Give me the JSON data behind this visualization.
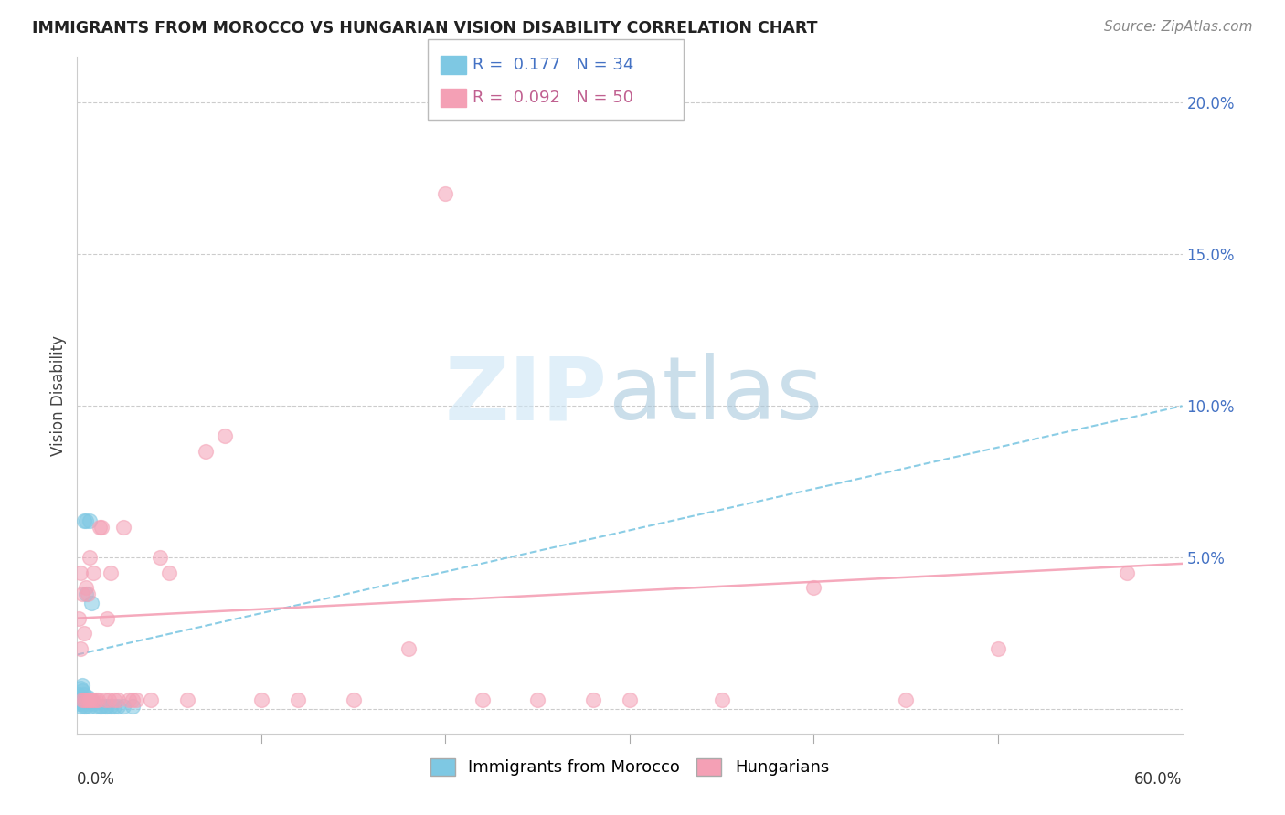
{
  "title": "IMMIGRANTS FROM MOROCCO VS HUNGARIAN VISION DISABILITY CORRELATION CHART",
  "source": "Source: ZipAtlas.com",
  "ylabel": "Vision Disability",
  "yticks": [
    0.0,
    0.05,
    0.1,
    0.15,
    0.2
  ],
  "ytick_labels": [
    "",
    "5.0%",
    "10.0%",
    "15.0%",
    "20.0%"
  ],
  "xlim": [
    0.0,
    0.6
  ],
  "ylim": [
    -0.008,
    0.215
  ],
  "legend1_R": "0.177",
  "legend1_N": "34",
  "legend2_R": "0.092",
  "legend2_N": "50",
  "blue_color": "#7ec8e3",
  "pink_color": "#f4a0b5",
  "blue_scatter_x": [
    0.001,
    0.001,
    0.002,
    0.002,
    0.002,
    0.003,
    0.003,
    0.003,
    0.003,
    0.004,
    0.004,
    0.004,
    0.004,
    0.005,
    0.005,
    0.005,
    0.005,
    0.006,
    0.006,
    0.007,
    0.007,
    0.008,
    0.008,
    0.009,
    0.01,
    0.012,
    0.013,
    0.015,
    0.016,
    0.018,
    0.02,
    0.022,
    0.025,
    0.03
  ],
  "blue_scatter_y": [
    0.002,
    0.005,
    0.001,
    0.003,
    0.007,
    0.002,
    0.004,
    0.006,
    0.008,
    0.001,
    0.003,
    0.005,
    0.062,
    0.001,
    0.003,
    0.038,
    0.062,
    0.002,
    0.004,
    0.001,
    0.062,
    0.003,
    0.035,
    0.002,
    0.001,
    0.001,
    0.001,
    0.001,
    0.001,
    0.001,
    0.001,
    0.001,
    0.001,
    0.001
  ],
  "pink_scatter_x": [
    0.001,
    0.002,
    0.002,
    0.003,
    0.003,
    0.004,
    0.004,
    0.005,
    0.005,
    0.006,
    0.006,
    0.007,
    0.007,
    0.008,
    0.009,
    0.009,
    0.01,
    0.011,
    0.012,
    0.013,
    0.015,
    0.016,
    0.017,
    0.018,
    0.02,
    0.022,
    0.025,
    0.028,
    0.03,
    0.032,
    0.04,
    0.045,
    0.05,
    0.06,
    0.07,
    0.08,
    0.1,
    0.12,
    0.15,
    0.18,
    0.2,
    0.22,
    0.25,
    0.28,
    0.3,
    0.35,
    0.4,
    0.45,
    0.5,
    0.57
  ],
  "pink_scatter_y": [
    0.03,
    0.02,
    0.045,
    0.003,
    0.038,
    0.003,
    0.025,
    0.003,
    0.04,
    0.003,
    0.038,
    0.003,
    0.05,
    0.003,
    0.003,
    0.045,
    0.003,
    0.003,
    0.06,
    0.06,
    0.003,
    0.03,
    0.003,
    0.045,
    0.003,
    0.003,
    0.06,
    0.003,
    0.003,
    0.003,
    0.003,
    0.05,
    0.045,
    0.003,
    0.085,
    0.09,
    0.003,
    0.003,
    0.003,
    0.02,
    0.17,
    0.003,
    0.003,
    0.003,
    0.003,
    0.003,
    0.04,
    0.003,
    0.02,
    0.045
  ],
  "blue_trend_x": [
    0.0,
    0.6
  ],
  "blue_trend_y": [
    0.018,
    0.1
  ],
  "pink_trend_x": [
    0.0,
    0.6
  ],
  "pink_trend_y": [
    0.03,
    0.048
  ]
}
